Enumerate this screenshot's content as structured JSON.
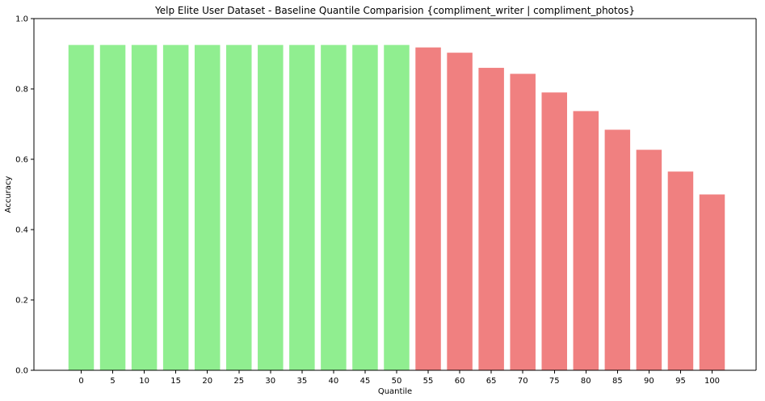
{
  "chart_data": {
    "type": "bar",
    "title": "Yelp Elite User Dataset - Baseline Quantile Comparision {compliment_writer | compliment_photos}",
    "xlabel": "Quantile",
    "ylabel": "Accuracy",
    "ylim": [
      0,
      1.0
    ],
    "yticks": [
      "0.0",
      "0.2",
      "0.4",
      "0.6",
      "0.8",
      "1.0"
    ],
    "grid": false,
    "categories": [
      "0",
      "5",
      "10",
      "15",
      "20",
      "25",
      "30",
      "35",
      "40",
      "45",
      "50",
      "55",
      "60",
      "65",
      "70",
      "75",
      "80",
      "85",
      "90",
      "95",
      "100"
    ],
    "values": [
      0.925,
      0.925,
      0.925,
      0.925,
      0.925,
      0.925,
      0.925,
      0.925,
      0.925,
      0.925,
      0.925,
      0.918,
      0.903,
      0.86,
      0.843,
      0.79,
      0.737,
      0.684,
      0.627,
      0.565,
      0.5
    ],
    "colors": [
      "#90EE90",
      "#90EE90",
      "#90EE90",
      "#90EE90",
      "#90EE90",
      "#90EE90",
      "#90EE90",
      "#90EE90",
      "#90EE90",
      "#90EE90",
      "#90EE90",
      "#F08080",
      "#F08080",
      "#F08080",
      "#F08080",
      "#F08080",
      "#F08080",
      "#F08080",
      "#F08080",
      "#F08080",
      "#F08080"
    ]
  }
}
